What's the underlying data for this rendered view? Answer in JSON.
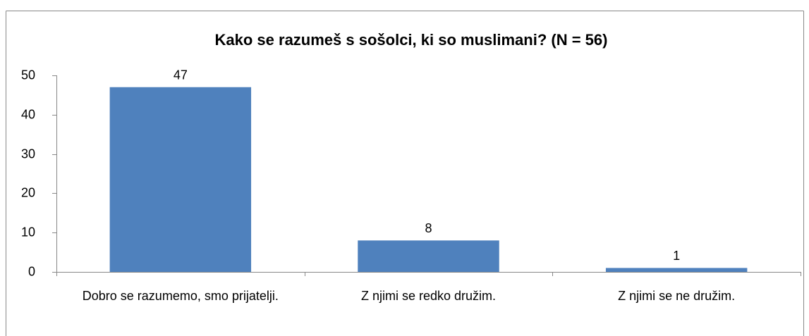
{
  "chart_data": {
    "type": "bar",
    "title": "Kako se razumeš s sošolci, ki so muslimani? (N = 56)",
    "categories": [
      "Dobro se razumemo, smo prijatelji.",
      "Z njimi se redko družim.",
      "Z njimi se ne družim."
    ],
    "values": [
      47,
      8,
      1
    ],
    "color": "#4f81bd",
    "ylim": [
      0,
      50
    ],
    "yticks": [
      0,
      10,
      20,
      30,
      40,
      50
    ],
    "grid": false
  }
}
